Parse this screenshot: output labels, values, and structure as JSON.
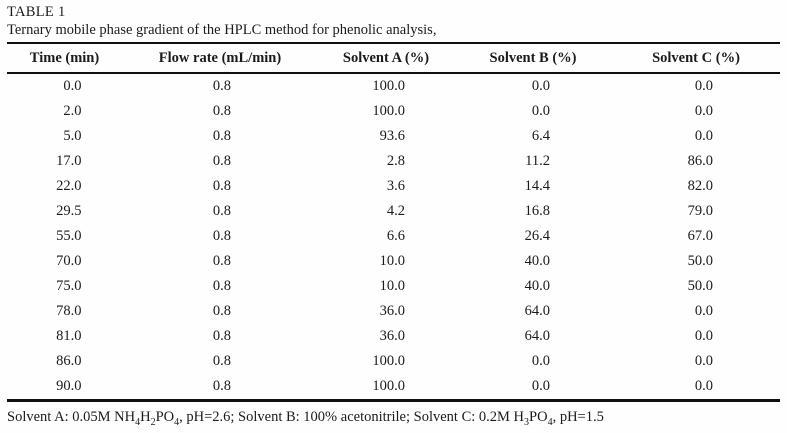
{
  "page": {
    "table_label": "TABLE 1",
    "caption": "Ternary mobile phase gradient of the HPLC method for phenolic analysis,"
  },
  "table": {
    "columns": [
      "Time (min)",
      "Flow rate (mL/min)",
      "Solvent A (%)",
      "Solvent B (%)",
      "Solvent C (%)"
    ],
    "rows": [
      [
        "0.0",
        "0.8",
        "100.0",
        "0.0",
        "0.0"
      ],
      [
        "2.0",
        "0.8",
        "100.0",
        "0.0",
        "0.0"
      ],
      [
        "5.0",
        "0.8",
        "93.6",
        "6.4",
        "0.0"
      ],
      [
        "17.0",
        "0.8",
        "2.8",
        "11.2",
        "86.0"
      ],
      [
        "22.0",
        "0.8",
        "3.6",
        "14.4",
        "82.0"
      ],
      [
        "29.5",
        "0.8",
        "4.2",
        "16.8",
        "79.0"
      ],
      [
        "55.0",
        "0.8",
        "6.6",
        "26.4",
        "67.0"
      ],
      [
        "70.0",
        "0.8",
        "10.0",
        "40.0",
        "50.0"
      ],
      [
        "75.0",
        "0.8",
        "10.0",
        "40.0",
        "50.0"
      ],
      [
        "78.0",
        "0.8",
        "36.0",
        "64.0",
        "0.0"
      ],
      [
        "81.0",
        "0.8",
        "36.0",
        "64.0",
        "0.0"
      ],
      [
        "86.0",
        "0.8",
        "100.0",
        "0.0",
        "0.0"
      ],
      [
        "90.0",
        "0.8",
        "100.0",
        "0.0",
        "0.0"
      ]
    ]
  },
  "footnote": {
    "segments": [
      {
        "text": "Solvent A: 0.05M NH"
      },
      {
        "sub": "4"
      },
      {
        "text": "H"
      },
      {
        "sub": "2"
      },
      {
        "text": "PO"
      },
      {
        "sub": "4"
      },
      {
        "text": ", pH=2.6; Solvent B: 100% acetonitrile; Solvent C: 0.2M H"
      },
      {
        "sub": "3"
      },
      {
        "text": "PO"
      },
      {
        "sub": "4"
      },
      {
        "text": ", pH=1.5"
      }
    ]
  },
  "colors": {
    "background": "#fefefe",
    "text": "#1b1b1b",
    "rule": "#101010"
  }
}
